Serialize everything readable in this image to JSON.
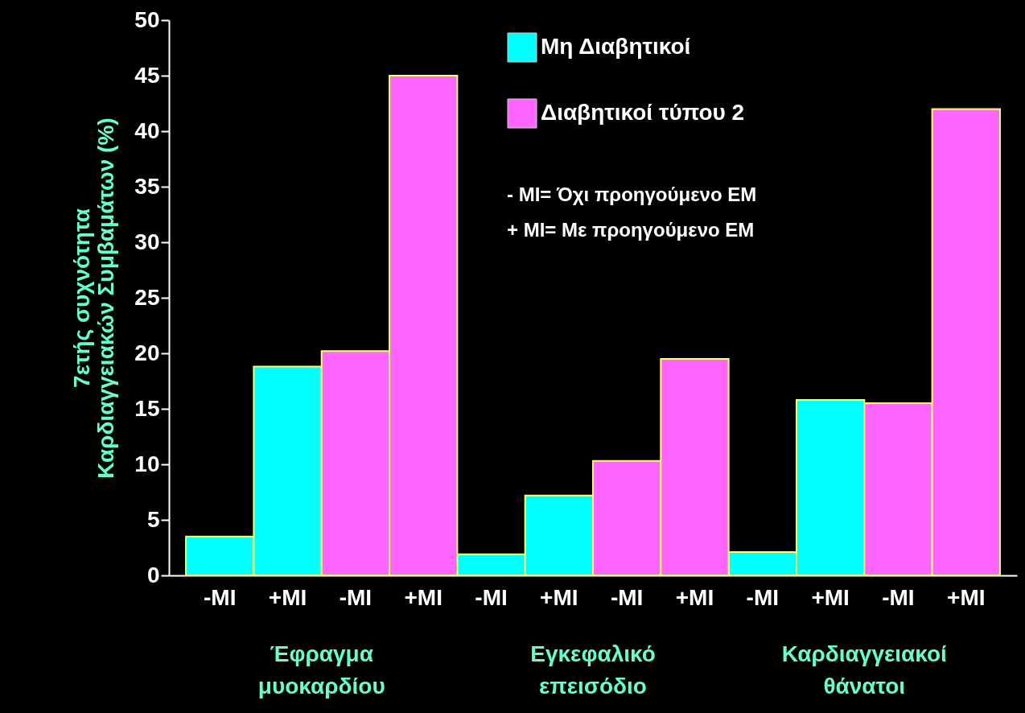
{
  "chart_data": {
    "type": "bar",
    "ylabel": "7ετής συχνότητα\nΚαρδιαγγειακών Συμβαμάτων (%)",
    "categories": [
      "-MI",
      "+MI",
      "-MI",
      "+MI",
      "-MI",
      "+MI",
      "-MI",
      "+MI",
      "-MI",
      "+MI",
      "-MI",
      "+MI"
    ],
    "series": [
      {
        "name": "Μη Διαβητικοί",
        "color": "#00ffff",
        "values": [
          3.5,
          18.8,
          null,
          null,
          1.9,
          7.2,
          null,
          null,
          2.1,
          15.8,
          null,
          null
        ]
      },
      {
        "name": "Διαβητικοί τύπου 2",
        "color": "#ff66ff",
        "values": [
          null,
          null,
          20.2,
          45,
          null,
          null,
          10.3,
          19.5,
          null,
          null,
          15.5,
          42
        ]
      }
    ],
    "ylim": [
      0,
      50
    ],
    "yticks": [
      0,
      5,
      10,
      15,
      20,
      25,
      30,
      35,
      40,
      45,
      50
    ],
    "grid": false,
    "legend": "top right",
    "annotations": [
      "Έφραγμα\nμυοκαρδίου",
      "Εγκεφαλικό\nεπεισόδιο",
      "Καρδιαγγειακοί\nθάνατοι",
      "- MI= Όχι προηγούμενο ΕΜ",
      "+ MI= Με προηγούμενο ΕΜ"
    ]
  }
}
